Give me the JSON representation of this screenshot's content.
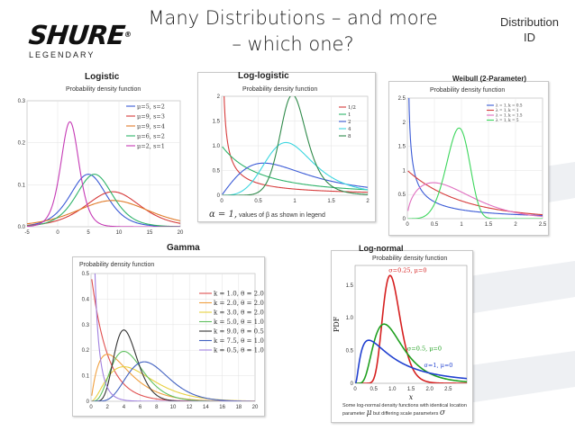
{
  "slide": {
    "title_line1": "Many Distributions – and more",
    "title_line2": "– which one?",
    "corner_line1": "Distribution",
    "corner_line2": "ID"
  },
  "logo": {
    "word": "SHURE",
    "reg": "®",
    "tagline": "LEGENDARY"
  },
  "panels": {
    "logistic": {
      "title": "Logistic",
      "header": "Probability density function"
    },
    "loglogistic": {
      "title": "Log-logistic",
      "header": "Probability density function",
      "caption_alpha": "α = 1,",
      "caption_rest": "values of β as shown in legend"
    },
    "weibull": {
      "title": "Weibull (2-Parameter)",
      "header": "Probability density function"
    },
    "gamma": {
      "title": "Gamma",
      "header": "Probability density function"
    },
    "lognormal": {
      "title": "Log-normal",
      "header": "Probability density function",
      "ylabel": "PDF",
      "xlabel": "x",
      "caption_line1": "Some log-normal density functions with identical location",
      "caption_line2a": "parameter",
      "caption_mu": "μ",
      "caption_line2b": "but differing scale parameters",
      "caption_sigma": "σ"
    }
  },
  "chart_data": [
    {
      "type": "line",
      "title": "Logistic",
      "subtitle": "Probability density function",
      "xlim": [
        -5,
        20
      ],
      "ylim": [
        0,
        0.3
      ],
      "xticks": [
        "-5",
        "0",
        "5",
        "10",
        "15",
        "20"
      ],
      "yticks": [
        "0.0",
        "0.1",
        "0.2",
        "0.3"
      ],
      "legend_placement": "top-right",
      "series": [
        {
          "name": "μ=5, s=2",
          "color": "#3b5bd6",
          "mu": 5,
          "s": 2
        },
        {
          "name": "μ=9, s=3",
          "color": "#d63b3b",
          "mu": 9,
          "s": 3
        },
        {
          "name": "μ=9, s=4",
          "color": "#e07b2a",
          "mu": 9,
          "s": 4
        },
        {
          "name": "μ=6, s=2",
          "color": "#2fb36a",
          "mu": 6,
          "s": 2
        },
        {
          "name": "μ=2, s=1",
          "color": "#c53ab5",
          "mu": 2,
          "s": 1
        }
      ]
    },
    {
      "type": "line",
      "title": "Log-logistic",
      "subtitle": "Probability density function",
      "xlim": [
        0,
        2
      ],
      "ylim": [
        0,
        2
      ],
      "xticks": [
        "0",
        "0.5",
        "1",
        "1.5",
        "2"
      ],
      "yticks": [
        "0",
        "0.5",
        "1.0",
        "1.5",
        "2"
      ],
      "legend_placement": "top-right",
      "series": [
        {
          "name": "1/2",
          "color": "#d63b3b",
          "beta": 0.5
        },
        {
          "name": "1",
          "color": "#2fb36a",
          "beta": 1
        },
        {
          "name": "2",
          "color": "#3b5bd6",
          "beta": 2
        },
        {
          "name": "4",
          "color": "#3bd6e0",
          "beta": 4
        },
        {
          "name": "8",
          "color": "#2f8a4a",
          "beta": 8
        }
      ]
    },
    {
      "type": "line",
      "title": "Weibull (2-Parameter)",
      "subtitle": "Probability density function",
      "xlim": [
        0,
        2.5
      ],
      "ylim": [
        0,
        2.5
      ],
      "xticks": [
        "0",
        "0.5",
        "1",
        "1.5",
        "2",
        "2.5"
      ],
      "yticks": [
        "0",
        "0.5",
        "1",
        "1.5",
        "2",
        "2.5"
      ],
      "legend_placement": "top-right",
      "series": [
        {
          "name": "λ = 1, k = 0.5",
          "color": "#3b5bd6",
          "lambda": 1,
          "k": 0.5
        },
        {
          "name": "λ = 1, k = 1",
          "color": "#d63b3b",
          "lambda": 1,
          "k": 1
        },
        {
          "name": "λ = 1, k = 1.5",
          "color": "#e070c0",
          "lambda": 1,
          "k": 1.5
        },
        {
          "name": "λ = 1, k = 5",
          "color": "#3bd65b",
          "lambda": 1,
          "k": 5
        }
      ]
    },
    {
      "type": "line",
      "title": "Gamma",
      "subtitle": "Probability density function",
      "xlim": [
        0,
        20
      ],
      "ylim": [
        0,
        0.5
      ],
      "xticks": [
        "0",
        "2",
        "4",
        "6",
        "8",
        "10",
        "12",
        "14",
        "16",
        "18",
        "20"
      ],
      "yticks": [
        "0",
        "0.1",
        "0.2",
        "0.3",
        "0.4",
        "0.5"
      ],
      "legend_placement": "top-right",
      "series": [
        {
          "name": "k = 1.0, θ = 2.0",
          "color": "#e05050",
          "k": 1.0,
          "theta": 2.0
        },
        {
          "name": "k = 2.0, θ = 2.0",
          "color": "#f0a040",
          "k": 2.0,
          "theta": 2.0
        },
        {
          "name": "k = 3.0, θ = 2.0",
          "color": "#e8d040",
          "k": 3.0,
          "theta": 2.0
        },
        {
          "name": "k = 5.0, θ = 1.0",
          "color": "#60c060",
          "k": 5.0,
          "theta": 1.0
        },
        {
          "name": "k = 9.0, θ = 0.5",
          "color": "#333333",
          "k": 9.0,
          "theta": 0.5
        },
        {
          "name": "k = 7.5, θ = 1.0",
          "color": "#4060c0",
          "k": 7.5,
          "theta": 1.0
        },
        {
          "name": "k = 0.5, θ = 1.0",
          "color": "#a080e0",
          "k": 0.5,
          "theta": 1.0
        }
      ]
    },
    {
      "type": "line",
      "title": "Log-normal",
      "subtitle": "Probability density function",
      "xlabel": "x",
      "ylabel": "PDF",
      "xlim": [
        0,
        3
      ],
      "ylim": [
        0,
        1.8
      ],
      "xticks": [
        "0",
        "0.5",
        "1.0",
        "1.5",
        "2.0",
        "2.5"
      ],
      "yticks": [
        "0",
        "0.5",
        "1.0",
        "1.5"
      ],
      "series": [
        {
          "name": "σ=0.25, μ=0",
          "color": "#d62020",
          "sigma": 0.25,
          "mu": 0
        },
        {
          "name": "σ=0.5, μ=0",
          "color": "#20a020",
          "sigma": 0.5,
          "mu": 0
        },
        {
          "name": "σ=1, μ=0",
          "color": "#2040d0",
          "sigma": 1,
          "mu": 0
        }
      ]
    }
  ]
}
